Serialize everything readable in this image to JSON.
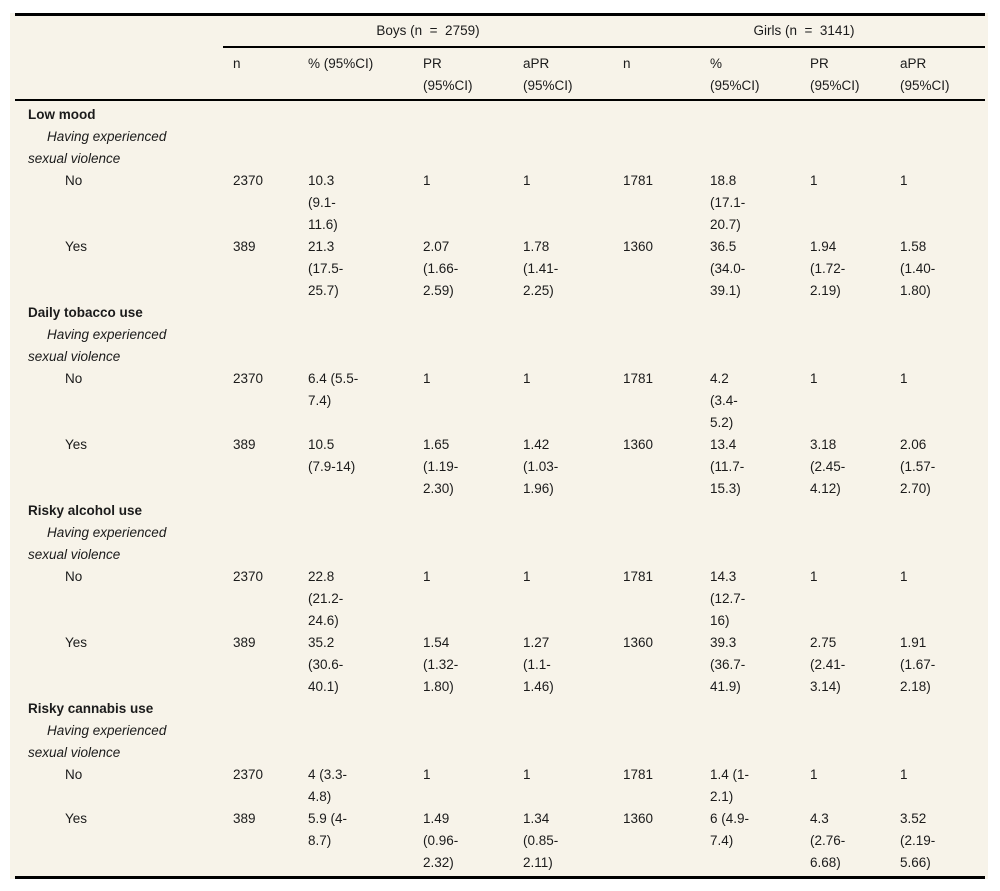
{
  "table": {
    "colors": {
      "background": "#f7f3e9",
      "rule": "#000000",
      "text": "#1b1b1b"
    },
    "groups": [
      {
        "label": "Boys (n  =  2759)"
      },
      {
        "label": "Girls (n  =  3141)"
      }
    ],
    "columns": [
      "n",
      "% (95%CI)",
      "PR\n(95%CI)",
      "aPR\n(95%CI)",
      "n",
      "%\n(95%CI)",
      "PR\n(95%CI)",
      "aPR\n(95%CI)"
    ],
    "sections": [
      {
        "title": "Low mood",
        "subgroup": "Having experienced\nsexual violence",
        "rows": [
          {
            "label": "No",
            "cells": [
              "2370",
              "10.3\n(9.1-\n11.6)",
              "1",
              "1",
              "1781",
              "18.8\n(17.1-\n20.7)",
              "1",
              "1"
            ]
          },
          {
            "label": "Yes",
            "cells": [
              "389",
              "21.3\n(17.5-\n25.7)",
              "2.07\n(1.66-\n2.59)",
              "1.78\n(1.41-\n2.25)",
              "1360",
              "36.5\n(34.0-\n39.1)",
              "1.94\n(1.72-\n2.19)",
              "1.58\n(1.40-\n1.80)"
            ]
          }
        ]
      },
      {
        "title": "Daily tobacco use",
        "subgroup": "Having experienced\nsexual violence",
        "rows": [
          {
            "label": "No",
            "cells": [
              "2370",
              "6.4 (5.5-\n7.4)",
              "1",
              "1",
              "1781",
              "4.2\n(3.4-\n5.2)",
              "1",
              "1"
            ]
          },
          {
            "label": "Yes",
            "cells": [
              "389",
              "10.5\n(7.9-14)",
              "1.65\n(1.19-\n2.30)",
              "1.42\n(1.03-\n1.96)",
              "1360",
              "13.4\n(11.7-\n15.3)",
              "3.18\n(2.45-\n4.12)",
              "2.06\n(1.57-\n2.70)"
            ]
          }
        ]
      },
      {
        "title": "Risky alcohol use",
        "subgroup": "Having experienced\nsexual violence",
        "rows": [
          {
            "label": "No",
            "cells": [
              "2370",
              "22.8\n(21.2-\n24.6)",
              "1",
              "1",
              "1781",
              "14.3\n(12.7-\n16)",
              "1",
              "1"
            ]
          },
          {
            "label": "Yes",
            "cells": [
              "389",
              "35.2\n(30.6-\n40.1)",
              "1.54\n(1.32-\n1.80)",
              "1.27\n(1.1-\n1.46)",
              "1360",
              "39.3\n(36.7-\n41.9)",
              "2.75\n(2.41-\n3.14)",
              "1.91\n(1.67-\n2.18)"
            ]
          }
        ]
      },
      {
        "title": "Risky cannabis use",
        "subgroup": "Having experienced\nsexual violence",
        "rows": [
          {
            "label": "No",
            "cells": [
              "2370",
              "4 (3.3-\n4.8)",
              "1",
              "1",
              "1781",
              "1.4 (1-\n2.1)",
              "1",
              "1"
            ]
          },
          {
            "label": "Yes",
            "cells": [
              "389",
              "5.9 (4-\n8.7)",
              "1.49\n(0.96-\n2.32)",
              "1.34\n(0.85-\n2.11)",
              "1360",
              "6 (4.9-\n7.4)",
              "4.3\n(2.76-\n6.68)",
              "3.52\n(2.19-\n5.66)"
            ]
          }
        ]
      }
    ]
  }
}
